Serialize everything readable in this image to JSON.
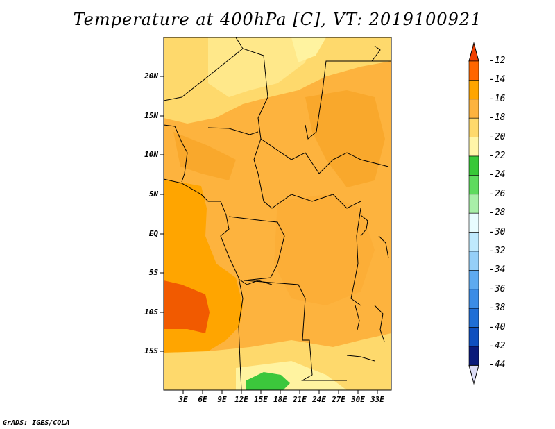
{
  "title": "Temperature at 400hPa [C], VT: 2019100921",
  "credit": "GrADS: IGES/COLA",
  "map": {
    "lat_labels": [
      "20N",
      "15N",
      "10N",
      "5N",
      "EQ",
      "5S",
      "10S",
      "15S"
    ],
    "lon_labels": [
      "3E",
      "6E",
      "9E",
      "12E",
      "15E",
      "18E",
      "21E",
      "24E",
      "27E",
      "30E",
      "33E"
    ],
    "fill_colors": {
      "m14_12": "#ff6600",
      "m16_14": "#ffa500",
      "m18_16": "#fdb33e",
      "m20_18": "#fed96c",
      "m22_20": "#fff3a0",
      "m24_22": "#3cc73c",
      "land_border": "#000000"
    }
  },
  "colorbar": {
    "labels": [
      "-12",
      "-14",
      "-16",
      "-18",
      "-20",
      "-22",
      "-24",
      "-26",
      "-28",
      "-30",
      "-32",
      "-34",
      "-36",
      "-38",
      "-40",
      "-42",
      "-44"
    ],
    "colors": [
      "#f14001",
      "#ff6600",
      "#ffa500",
      "#fdb33e",
      "#fed96c",
      "#fff5a8",
      "#37c837",
      "#5edb5e",
      "#a8efa8",
      "#e8fcfe",
      "#bfe9fd",
      "#95cff8",
      "#5eaaf0",
      "#3b8ce6",
      "#1f6ed6",
      "#0f4fbf",
      "#0a1a7a",
      "#dcdcf5"
    ]
  }
}
